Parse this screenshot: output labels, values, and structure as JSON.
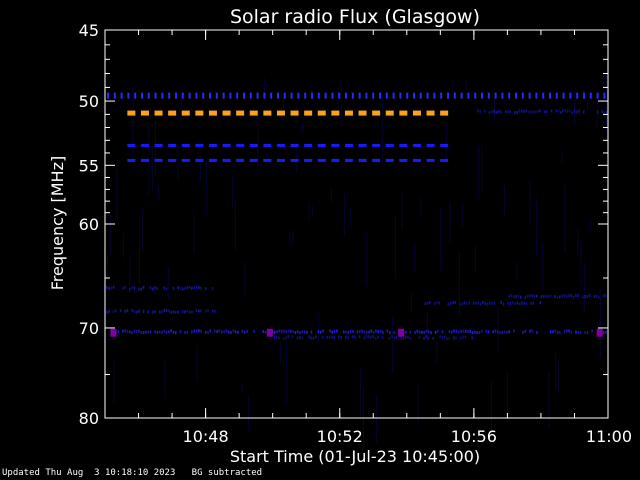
{
  "chart_data": {
    "type": "heatmap",
    "title": "Solar radio Flux (Glasgow)",
    "xlabel": "Start Time (01-Jul-23 10:45:00)",
    "ylabel": "Frequency [MHz]",
    "x_ticks": [
      "10:48",
      "10:52",
      "10:56",
      "11:00"
    ],
    "y_ticks": [
      "45",
      "50",
      "55",
      "60",
      "70",
      "80"
    ],
    "xlim": [
      "10:45:00",
      "11:00:00"
    ],
    "ylim": [
      45,
      80
    ],
    "y_scale": "log",
    "features": [
      {
        "start": "10:45:40",
        "end": "10:55:15",
        "freq_mhz": 50.9,
        "color": "#ffa020",
        "kind": "dashed"
      },
      {
        "start": "10:45:40",
        "end": "10:55:15",
        "freq_mhz": 53.4,
        "color": "#1a1aff",
        "kind": "dashed"
      },
      {
        "start": "10:45:40",
        "end": "10:55:15",
        "freq_mhz": 54.6,
        "color": "#1a1aff",
        "kind": "dashed"
      },
      {
        "start": "10:45:00",
        "end": "11:00:00",
        "freq_mhz": 49.6,
        "color": "#2a2aff",
        "kind": "ticks"
      },
      {
        "start": "10:45:00",
        "end": "11:00:00",
        "freq_mhz": 70.4,
        "color": "#2020e0",
        "kind": "band"
      },
      {
        "start": "10:45:00",
        "end": "10:48:20",
        "freq_mhz": 66.0,
        "color": "#1818b0",
        "kind": "band"
      },
      {
        "start": "10:45:00",
        "end": "10:48:20",
        "freq_mhz": 68.3,
        "color": "#1818b0",
        "kind": "band"
      },
      {
        "start": "10:54:30",
        "end": "10:58:00",
        "freq_mhz": 67.5,
        "color": "#1414a0",
        "kind": "band"
      },
      {
        "start": "10:57:00",
        "end": "11:00:00",
        "freq_mhz": 66.8,
        "color": "#1414a0",
        "kind": "band"
      },
      {
        "start": "10:50:00",
        "end": "10:56:00",
        "freq_mhz": 71.0,
        "color": "#1212a0",
        "kind": "band"
      },
      {
        "start": "10:56:00",
        "end": "11:00:00",
        "freq_mhz": 50.8,
        "color": "#1414a0",
        "kind": "band"
      }
    ],
    "hotspots": [
      {
        "time": "10:45:15",
        "freq_mhz": 70.5,
        "color": "#8000a0"
      },
      {
        "time": "10:49:55",
        "freq_mhz": 70.5,
        "color": "#8000a0"
      },
      {
        "time": "10:53:50",
        "freq_mhz": 70.5,
        "color": "#8000a0"
      },
      {
        "time": "10:59:45",
        "freq_mhz": 70.5,
        "color": "#8000a0"
      }
    ],
    "background": "BG subtracted"
  },
  "footer": {
    "updated": "Updated Thu Aug  3 10:18:10 2023",
    "note": "BG subtracted"
  }
}
